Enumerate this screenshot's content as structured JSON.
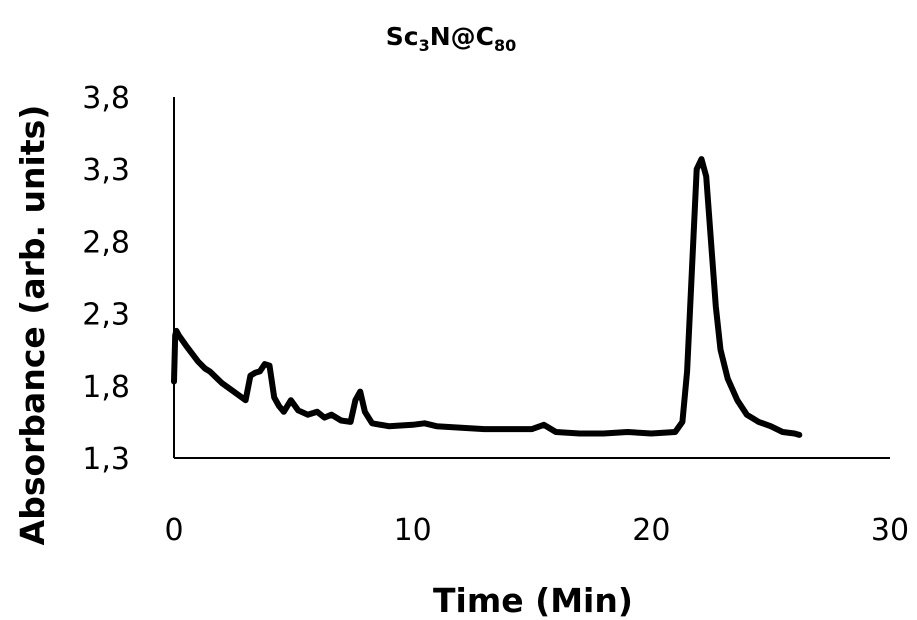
{
  "chart_data": {
    "type": "line",
    "title": {
      "base1": "Sc",
      "sub1": "3",
      "base2": "N@C",
      "sub2": "80"
    },
    "xlabel": "Time (Min)",
    "ylabel": "Absorbance (arb. units)",
    "xlim": [
      0,
      30
    ],
    "ylim": [
      1.3,
      3.8
    ],
    "xticks": [
      "0",
      "10",
      "20",
      "30"
    ],
    "yticks": [
      "1,3",
      "1,8",
      "2,3",
      "2,8",
      "3,3",
      "3,8"
    ],
    "grid": false,
    "legend": "none",
    "line_color": "#000000",
    "series": [
      {
        "x": [
          0.0,
          0.05,
          0.1,
          0.2,
          0.5,
          1.0,
          1.3,
          1.5,
          2.0,
          2.5,
          3.0,
          3.2,
          3.4,
          3.6,
          3.8,
          4.0,
          4.2,
          4.4,
          4.6,
          4.9,
          5.2,
          5.6,
          6.0,
          6.3,
          6.6,
          7.0,
          7.4,
          7.6,
          7.8,
          8.0,
          8.3,
          9.0,
          10.0,
          10.5,
          11.0,
          13.0,
          15.0,
          15.5,
          16.0,
          17.0,
          18.0,
          19.0,
          20.0,
          21.0,
          21.3,
          21.5,
          21.7,
          21.9,
          22.1,
          22.3,
          22.5,
          22.7,
          22.9,
          23.2,
          23.6,
          24.0,
          24.5,
          25.0,
          25.5,
          26.0,
          26.2
        ],
        "y": [
          1.83,
          2.15,
          2.18,
          2.15,
          2.08,
          1.97,
          1.92,
          1.9,
          1.82,
          1.76,
          1.7,
          1.87,
          1.89,
          1.9,
          1.95,
          1.94,
          1.72,
          1.66,
          1.62,
          1.7,
          1.63,
          1.6,
          1.62,
          1.58,
          1.6,
          1.56,
          1.55,
          1.7,
          1.76,
          1.62,
          1.54,
          1.52,
          1.53,
          1.54,
          1.52,
          1.5,
          1.5,
          1.53,
          1.48,
          1.47,
          1.47,
          1.48,
          1.47,
          1.48,
          1.55,
          1.9,
          2.6,
          3.3,
          3.37,
          3.25,
          2.8,
          2.35,
          2.05,
          1.85,
          1.7,
          1.6,
          1.55,
          1.52,
          1.48,
          1.47,
          1.46
        ]
      }
    ]
  }
}
